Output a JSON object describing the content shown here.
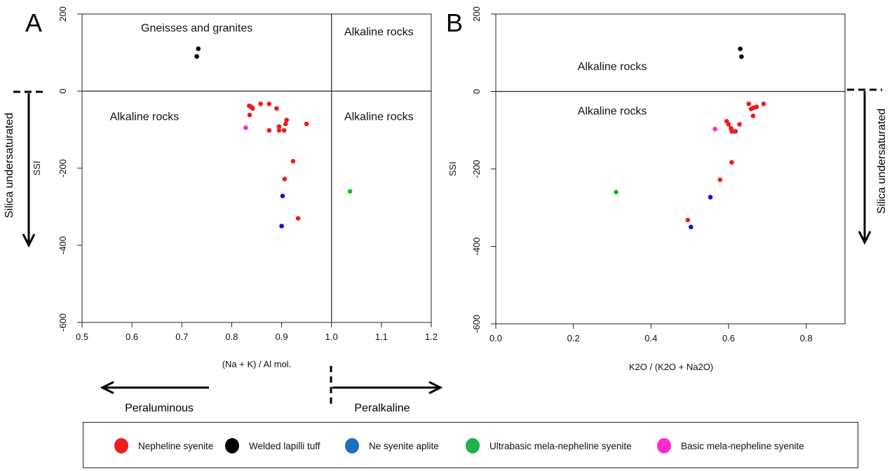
{
  "chart_data": [
    {
      "panel_label": "A",
      "type": "scatter",
      "xlabel": "(Na + K) / Al mol.",
      "ylabel": "SSI",
      "xlim": [
        0.5,
        1.2
      ],
      "ylim": [
        -600,
        200
      ],
      "xticks": [
        "0.5",
        "0.6",
        "0.7",
        "0.8",
        "0.9",
        "1.0",
        "1.1",
        "1.2"
      ],
      "yticks": [
        "-600",
        "-400",
        "-200",
        "0",
        "200"
      ],
      "reference_lines": {
        "vertical_x": 1.0,
        "horizontal_y": 0
      },
      "region_labels": [
        {
          "text": "Gneisses and granites",
          "x": 0.73,
          "y": 155
        },
        {
          "text": "Alkaline rocks",
          "x": 1.095,
          "y": 145
        },
        {
          "text": "Alkaline rocks",
          "x": 0.625,
          "y": -75
        },
        {
          "text": "Alkaline rocks",
          "x": 1.095,
          "y": -75
        }
      ],
      "series": [
        {
          "name": "Nepheline syenite",
          "color": "#ee1c1c",
          "points": [
            [
              0.835,
              -38
            ],
            [
              0.838,
              -40
            ],
            [
              0.84,
              -42
            ],
            [
              0.842,
              -45
            ],
            [
              0.836,
              -62
            ],
            [
              0.858,
              -33
            ],
            [
              0.875,
              -33
            ],
            [
              0.89,
              -45
            ],
            [
              0.91,
              -75
            ],
            [
              0.908,
              -85
            ],
            [
              0.95,
              -85
            ],
            [
              0.895,
              -92
            ],
            [
              0.875,
              -102
            ],
            [
              0.895,
              -102
            ],
            [
              0.905,
              -102
            ],
            [
              0.923,
              -182
            ],
            [
              0.906,
              -228
            ],
            [
              0.933,
              -330
            ]
          ]
        },
        {
          "name": "Welded lapilli tuff",
          "color": "#000000",
          "points": [
            [
              0.733,
              110
            ],
            [
              0.73,
              90
            ]
          ]
        },
        {
          "name": "Ne syenite aplite",
          "color": "#1010dd",
          "points": [
            [
              0.902,
              -272
            ],
            [
              0.9,
              -350
            ]
          ]
        },
        {
          "name": "Ultrabasic mela-nepheline syenite",
          "color": "#10c010",
          "points": [
            [
              1.037,
              -260
            ]
          ]
        },
        {
          "name": "Basic mela-nepheline syenite",
          "color": "#ff2ad0",
          "points": [
            [
              0.828,
              -95
            ]
          ]
        }
      ]
    },
    {
      "panel_label": "B",
      "type": "scatter",
      "xlabel": "K2O / (K2O + Na2O)",
      "ylabel": "SSI",
      "xlim": [
        0.0,
        0.9
      ],
      "ylim": [
        -600,
        200
      ],
      "xticks": [
        "0.0",
        "0.2",
        "0.4",
        "0.6",
        "0.8"
      ],
      "yticks": [
        "-600",
        "-400",
        "-200",
        "0",
        "200"
      ],
      "reference_lines": {
        "horizontal_y": 0
      },
      "region_labels": [
        {
          "text": "Alkaline rocks",
          "x": 0.3,
          "y": 55
        },
        {
          "text": "Alkaline rocks",
          "x": 0.3,
          "y": -60
        }
      ],
      "series": [
        {
          "name": "Nepheline syenite",
          "color": "#ee1c1c",
          "points": [
            [
              0.652,
              -32
            ],
            [
              0.69,
              -32
            ],
            [
              0.672,
              -40
            ],
            [
              0.665,
              -42
            ],
            [
              0.658,
              -45
            ],
            [
              0.663,
              -63
            ],
            [
              0.595,
              -77
            ],
            [
              0.6,
              -85
            ],
            [
              0.606,
              -95
            ],
            [
              0.628,
              -85
            ],
            [
              0.608,
              -103
            ],
            [
              0.618,
              -103
            ],
            [
              0.612,
              -103
            ],
            [
              0.608,
              -183
            ],
            [
              0.578,
              -228
            ],
            [
              0.495,
              -332
            ]
          ]
        },
        {
          "name": "Welded lapilli tuff",
          "color": "#000000",
          "points": [
            [
              0.63,
              110
            ],
            [
              0.633,
              90
            ]
          ]
        },
        {
          "name": "Ne syenite aplite",
          "color": "#1010dd",
          "points": [
            [
              0.553,
              -273
            ],
            [
              0.503,
              -350
            ]
          ]
        },
        {
          "name": "Ultrabasic mela-nepheline syenite",
          "color": "#10c010",
          "points": [
            [
              0.31,
              -260
            ]
          ]
        },
        {
          "name": "Basic mela-nepheline syenite",
          "color": "#ff2ad0",
          "points": [
            [
              0.565,
              -97
            ]
          ]
        }
      ]
    }
  ],
  "annotations": {
    "silica_undersaturated": "Silica undersaturated",
    "peraluminous": "Peraluminous",
    "peralkaline": "Peralkaline"
  },
  "legend": [
    {
      "label": "Nepheline syenite",
      "color": "#ee1c1c"
    },
    {
      "label": "Welded lapilli tuff",
      "color": "#000000"
    },
    {
      "label": "Ne syenite aplite",
      "color": "#1f6fc0"
    },
    {
      "label": "Ultrabasic mela-nepheline syenite",
      "color": "#22b050"
    },
    {
      "label": "Basic mela-nepheline syenite",
      "color": "#ff2ad0"
    }
  ]
}
